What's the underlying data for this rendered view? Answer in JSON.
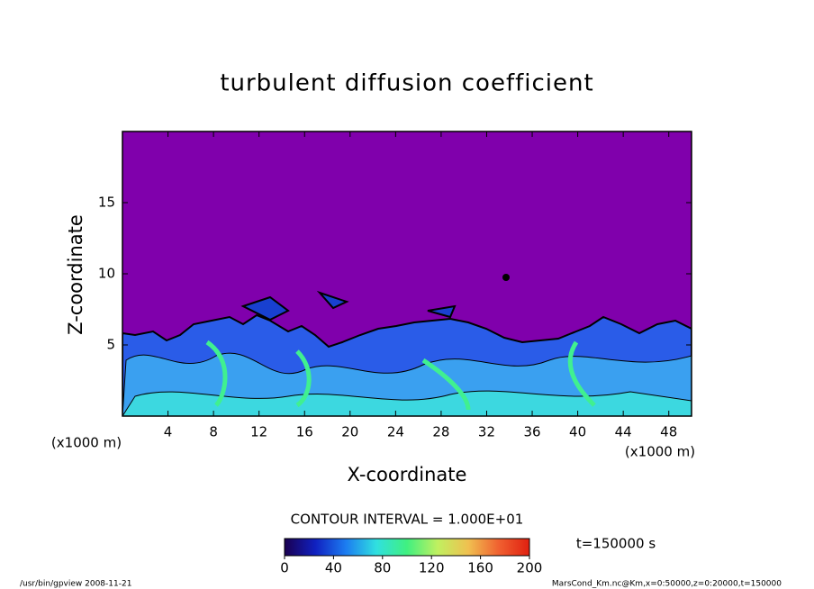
{
  "chart_data": {
    "type": "contour",
    "title": "turbulent diffusion coefficient",
    "x_label": "X-coordinate",
    "y_label": "Z-coordinate",
    "x_unit": "(x1000 m)",
    "y_unit": "(x1000 m)",
    "xlim": [
      0,
      50
    ],
    "xticks": [
      4,
      8,
      12,
      16,
      20,
      24,
      28,
      32,
      36,
      40,
      44,
      48
    ],
    "ylim": [
      0,
      20
    ],
    "yticks": [
      5,
      10,
      15
    ],
    "background_color": "#8000ac",
    "contour_interval": "CONTOUR INTERVAL = 1.000E+01",
    "time_label": "t=150000 s",
    "colorbar": {
      "lim": [
        0,
        200
      ],
      "ticks": [
        0,
        40,
        80,
        120,
        160,
        200
      ],
      "colors": [
        "#1a0050",
        "#1020c0",
        "#1c7cf0",
        "#30e0e0",
        "#40f080",
        "#c0f060",
        "#f0c050",
        "#f06030",
        "#e02010"
      ]
    },
    "footer_left": "/usr/bin/gpview   2008-11-21",
    "footer_right": "MarsCond_Km.nc@Km,x=0:50000,z=0:20000,t=150000"
  }
}
